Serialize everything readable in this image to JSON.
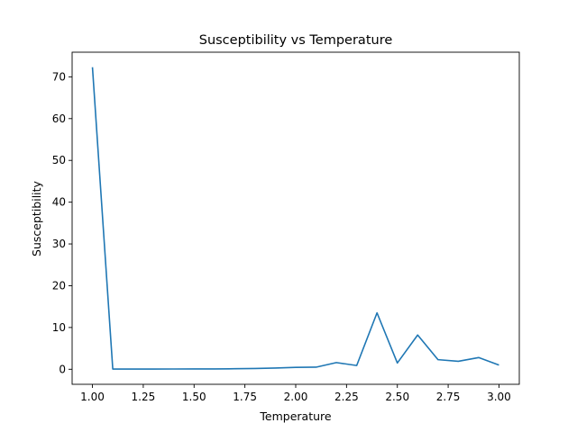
{
  "chart_data": {
    "type": "line",
    "title": "Susceptibility vs Temperature",
    "xlabel": "Temperature",
    "ylabel": "Susceptibility",
    "xlim": [
      0.9,
      3.1
    ],
    "ylim": [
      -3.6,
      75.9
    ],
    "x_ticks": [
      1.0,
      1.25,
      1.5,
      1.75,
      2.0,
      2.25,
      2.5,
      2.75,
      3.0
    ],
    "x_tick_labels": [
      "1.00",
      "1.25",
      "1.50",
      "1.75",
      "2.00",
      "2.25",
      "2.50",
      "2.75",
      "3.00"
    ],
    "y_ticks": [
      0,
      10,
      20,
      30,
      40,
      50,
      60,
      70
    ],
    "y_tick_labels": [
      "0",
      "10",
      "20",
      "30",
      "40",
      "50",
      "60",
      "70"
    ],
    "grid": false,
    "series": [
      {
        "color": "#1f77b4",
        "x": [
          1.0,
          1.1,
          1.2,
          1.3,
          1.4,
          1.5,
          1.6,
          1.7,
          1.8,
          1.9,
          2.0,
          2.1,
          2.2,
          2.3,
          2.4,
          2.5,
          2.6,
          2.7,
          2.8,
          2.9,
          3.0
        ],
        "y": [
          72.3,
          0.05,
          0.05,
          0.05,
          0.06,
          0.07,
          0.08,
          0.12,
          0.18,
          0.3,
          0.45,
          0.5,
          1.6,
          0.9,
          13.5,
          1.5,
          8.2,
          2.3,
          1.9,
          2.8,
          1.0
        ]
      }
    ]
  }
}
